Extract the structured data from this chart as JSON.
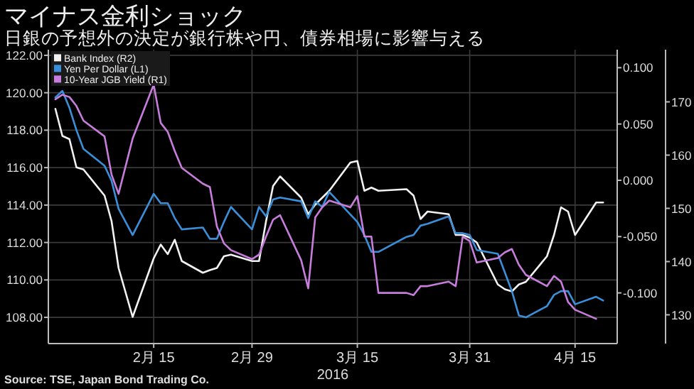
{
  "chart_data": {
    "type": "line",
    "title": "マイナス金利ショック",
    "subtitle": "日銀の予想外の決定が銀行株や円、債券相場に影響与える",
    "x": [
      "2016-02-01",
      "2016-02-02",
      "2016-02-03",
      "2016-02-04",
      "2016-02-05",
      "2016-02-08",
      "2016-02-09",
      "2016-02-10",
      "2016-02-12",
      "2016-02-15",
      "2016-02-16",
      "2016-02-17",
      "2016-02-18",
      "2016-02-19",
      "2016-02-22",
      "2016-02-23",
      "2016-02-24",
      "2016-02-25",
      "2016-02-26",
      "2016-02-29",
      "2016-03-01",
      "2016-03-02",
      "2016-03-03",
      "2016-03-04",
      "2016-03-07",
      "2016-03-08",
      "2016-03-09",
      "2016-03-10",
      "2016-03-11",
      "2016-03-14",
      "2016-03-15",
      "2016-03-16",
      "2016-03-17",
      "2016-03-18",
      "2016-03-22",
      "2016-03-23",
      "2016-03-24",
      "2016-03-25",
      "2016-03-28",
      "2016-03-29",
      "2016-03-30",
      "2016-03-31",
      "2016-04-01",
      "2016-04-04",
      "2016-04-05",
      "2016-04-06",
      "2016-04-07",
      "2016-04-08",
      "2016-04-11",
      "2016-04-12",
      "2016-04-13",
      "2016-04-14",
      "2016-04-15",
      "2016-04-18",
      "2016-04-19"
    ],
    "series": [
      {
        "name": "Bank Index (R2)",
        "color": "#f2f2f2",
        "axis": "y3",
        "values": [
          168.7,
          163.6,
          163.0,
          157.7,
          157.3,
          152.4,
          147.6,
          138.8,
          129.6,
          140.6,
          143.2,
          141.4,
          144.1,
          140.1,
          137.9,
          138.4,
          138.8,
          141.0,
          141.3,
          140.1,
          140.1,
          147.6,
          154.2,
          156.0,
          152.0,
          148.9,
          150.7,
          152.0,
          153.3,
          158.6,
          158.9,
          153.3,
          153.9,
          153.3,
          153.6,
          152.4,
          148.0,
          149.4,
          148.9,
          145.0,
          145.0,
          144.5,
          143.6,
          135.7,
          134.8,
          134.4,
          135.7,
          136.2,
          141.0,
          145.0,
          150.2,
          149.4,
          145.0,
          151.1,
          151.1
        ]
      },
      {
        "name": "Yen Per Dollar (L1)",
        "color": "#3b8fd9",
        "values": [
          119.75,
          120.1,
          119.2,
          118.0,
          117.0,
          116.1,
          115.3,
          113.8,
          112.4,
          114.6,
          114.1,
          114.1,
          113.3,
          112.7,
          112.8,
          112.2,
          112.2,
          113.1,
          113.9,
          112.7,
          113.9,
          113.4,
          114.3,
          114.4,
          114.2,
          113.3,
          114.2,
          113.9,
          114.7,
          113.5,
          113.1,
          112.4,
          111.5,
          111.5,
          112.3,
          112.4,
          112.9,
          113.0,
          113.4,
          112.5,
          112.5,
          112.4,
          111.6,
          111.4,
          110.4,
          109.4,
          108.1,
          108.0,
          108.6,
          109.2,
          109.4,
          109.4,
          108.7,
          109.1,
          108.9
        ]
      },
      {
        "name": "10-Year JGB Yield (R1)",
        "color": "#c77ddb",
        "axis": "y2",
        "values": [
          0.072,
          0.076,
          0.074,
          0.066,
          0.053,
          0.039,
          0.005,
          -0.012,
          0.037,
          0.085,
          0.051,
          0.043,
          0.026,
          0.011,
          -0.003,
          -0.006,
          -0.041,
          -0.056,
          -0.062,
          -0.07,
          -0.066,
          -0.05,
          -0.035,
          -0.031,
          -0.071,
          -0.096,
          -0.033,
          -0.024,
          -0.018,
          -0.024,
          -0.014,
          -0.05,
          -0.05,
          -0.1,
          -0.1,
          -0.102,
          -0.094,
          -0.094,
          -0.09,
          -0.094,
          -0.05,
          -0.054,
          -0.073,
          -0.069,
          -0.064,
          -0.061,
          -0.075,
          -0.084,
          -0.094,
          -0.085,
          -0.09,
          -0.108,
          -0.115,
          -0.123,
          null
        ]
      }
    ],
    "xlim": [
      "2016-01-31",
      "2016-04-21"
    ],
    "xticks": [
      {
        "value": "2016-02-15",
        "label": "2月 15"
      },
      {
        "value": "2016-02-29",
        "label": "2月 29"
      },
      {
        "value": "2016-03-15",
        "label": "3月 15"
      },
      {
        "value": "2016-03-31",
        "label": "3月 31"
      },
      {
        "value": "2016-04-15",
        "label": "4月 15"
      }
    ],
    "xlabel": "2016",
    "ylim": [
      106.6,
      122.3
    ],
    "yticks": [
      {
        "value": 108,
        "label": "108.00"
      },
      {
        "value": 110,
        "label": "110.00"
      },
      {
        "value": 112,
        "label": "112.00"
      },
      {
        "value": 114,
        "label": "114.00"
      },
      {
        "value": 116,
        "label": "116.00"
      },
      {
        "value": 118,
        "label": "118.00"
      },
      {
        "value": 120,
        "label": "120.00"
      },
      {
        "value": 122,
        "label": "122.00"
      }
    ],
    "y2lim": [
      -0.145,
      0.116
    ],
    "y2ticks": [
      {
        "value": -0.1,
        "label": "-0.100"
      },
      {
        "value": -0.05,
        "label": "-0.050"
      },
      {
        "value": 0,
        "label": "0.000"
      },
      {
        "value": 0.05,
        "label": "0.050"
      },
      {
        "value": 0.1,
        "label": "0.100"
      }
    ],
    "y3lim": [
      124.6,
      179.8
    ],
    "y3ticks": [
      130,
      140,
      150,
      160,
      170
    ],
    "grid": true,
    "legend": "top left",
    "marker": "none",
    "line_style": "solid",
    "annotations": [
      "Source: TSE, Japan Bond Trading Co."
    ]
  }
}
